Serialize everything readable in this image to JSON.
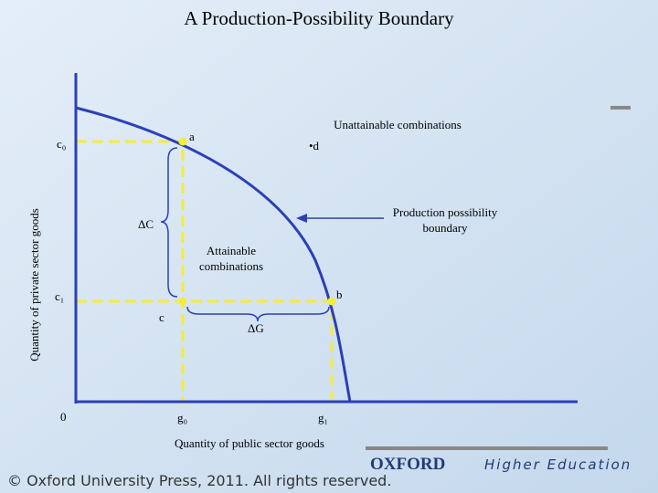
{
  "title": "A Production-Possibility Boundary",
  "axes": {
    "x_label": "Quantity of public sector goods",
    "y_label": "Quantity of private sector goods",
    "origin": "0"
  },
  "points": {
    "a": "a",
    "b": "b",
    "c": "c",
    "d": "•d"
  },
  "levels": {
    "c0": "c₀",
    "c1": "c₁",
    "g0": "g₀",
    "g1": "g₁"
  },
  "changes": {
    "delta_c": "ΔC",
    "delta_g": "ΔG"
  },
  "regions": {
    "unattainable": "Unattainable combinations",
    "attainable": [
      "Attainable",
      "combinations"
    ]
  },
  "boundary_label": [
    "Production possibility",
    "boundary"
  ],
  "footer": {
    "copyright": "© Oxford University Press, 2011. All rights reserved.",
    "brand": "OXFORD",
    "brand_sub": "Higher Education"
  }
}
